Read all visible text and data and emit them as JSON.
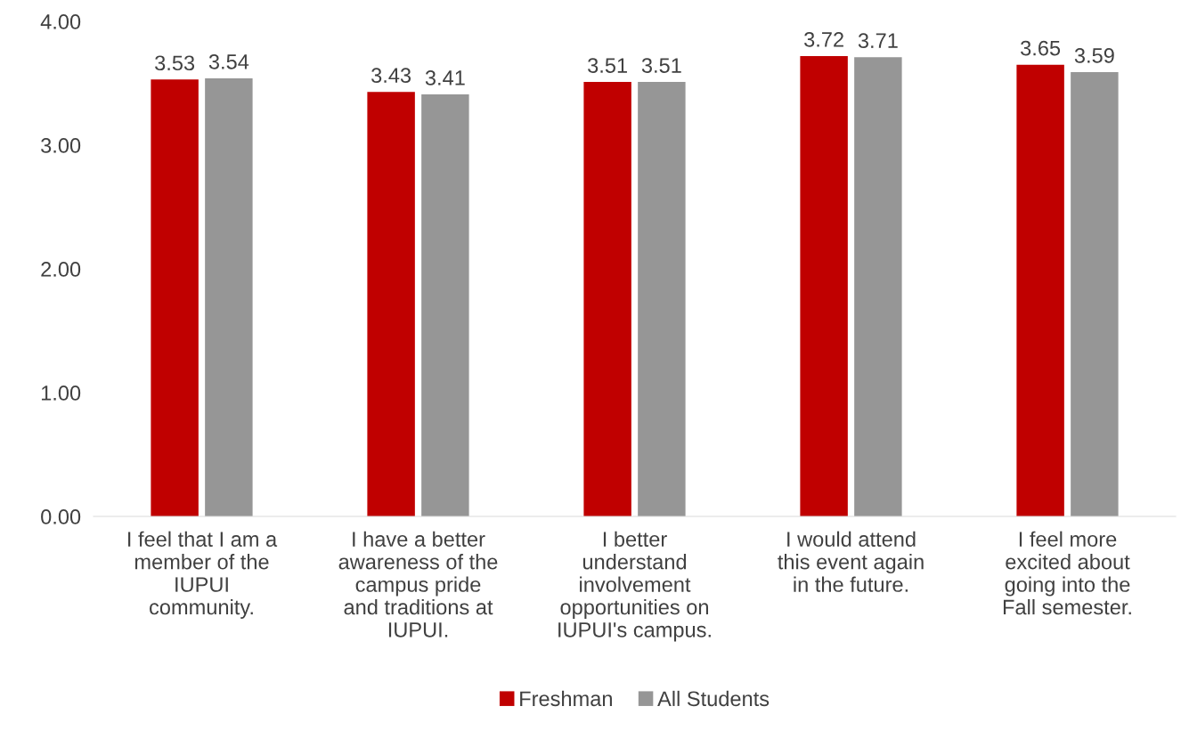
{
  "chart_data": {
    "type": "bar",
    "categories": [
      "I feel that I am a\nmember of the\nIUPUI\ncommunity.",
      "I have a better\nawareness of the\ncampus pride\nand traditions at\nIUPUI.",
      "I better\nunderstand\ninvolvement\nopportunities on\nIUPUI's campus.",
      "I would attend\nthis event again\nin the future.",
      "I feel more\nexcited about\ngoing into the\nFall semester."
    ],
    "series": [
      {
        "name": "Freshman",
        "color": "#c00000",
        "values": [
          3.53,
          3.43,
          3.51,
          3.72,
          3.65
        ]
      },
      {
        "name": "All Students",
        "color": "#969696",
        "values": [
          3.54,
          3.41,
          3.51,
          3.71,
          3.59
        ]
      }
    ],
    "ylim": [
      0,
      4
    ],
    "yticks": [
      {
        "value": 0,
        "label": "0.00"
      },
      {
        "value": 1,
        "label": "1.00"
      },
      {
        "value": 2,
        "label": "2.00"
      },
      {
        "value": 3,
        "label": "3.00"
      },
      {
        "value": 4,
        "label": "4.00"
      }
    ],
    "data_labels": true,
    "grid": false,
    "legend": "bottom"
  }
}
